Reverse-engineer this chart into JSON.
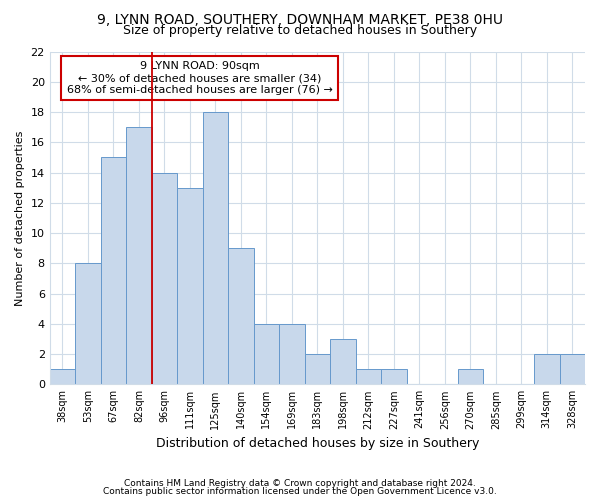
{
  "title1": "9, LYNN ROAD, SOUTHERY, DOWNHAM MARKET, PE38 0HU",
  "title2": "Size of property relative to detached houses in Southery",
  "xlabel": "Distribution of detached houses by size in Southery",
  "ylabel": "Number of detached properties",
  "bar_labels": [
    "38sqm",
    "53sqm",
    "67sqm",
    "82sqm",
    "96sqm",
    "111sqm",
    "125sqm",
    "140sqm",
    "154sqm",
    "169sqm",
    "183sqm",
    "198sqm",
    "212sqm",
    "227sqm",
    "241sqm",
    "256sqm",
    "270sqm",
    "285sqm",
    "299sqm",
    "314sqm",
    "328sqm"
  ],
  "bar_values": [
    1,
    8,
    15,
    17,
    14,
    13,
    18,
    9,
    4,
    4,
    2,
    3,
    1,
    1,
    0,
    0,
    1,
    0,
    0,
    2,
    2
  ],
  "bar_color": "#c8d8eb",
  "bar_edge_color": "#6699cc",
  "vline_x": 4,
  "vline_color": "#cc0000",
  "annotation_text": "9 LYNN ROAD: 90sqm\n← 30% of detached houses are smaller (34)\n68% of semi-detached houses are larger (76) →",
  "annotation_box_color": "#ffffff",
  "annotation_box_edge": "#cc0000",
  "ylim": [
    0,
    22
  ],
  "yticks": [
    0,
    2,
    4,
    6,
    8,
    10,
    12,
    14,
    16,
    18,
    20,
    22
  ],
  "footer1": "Contains HM Land Registry data © Crown copyright and database right 2024.",
  "footer2": "Contains public sector information licensed under the Open Government Licence v3.0.",
  "bg_color": "#ffffff",
  "plot_bg_color": "#ffffff",
  "grid_color": "#d0dce8",
  "title1_fontsize": 10,
  "title2_fontsize": 9
}
